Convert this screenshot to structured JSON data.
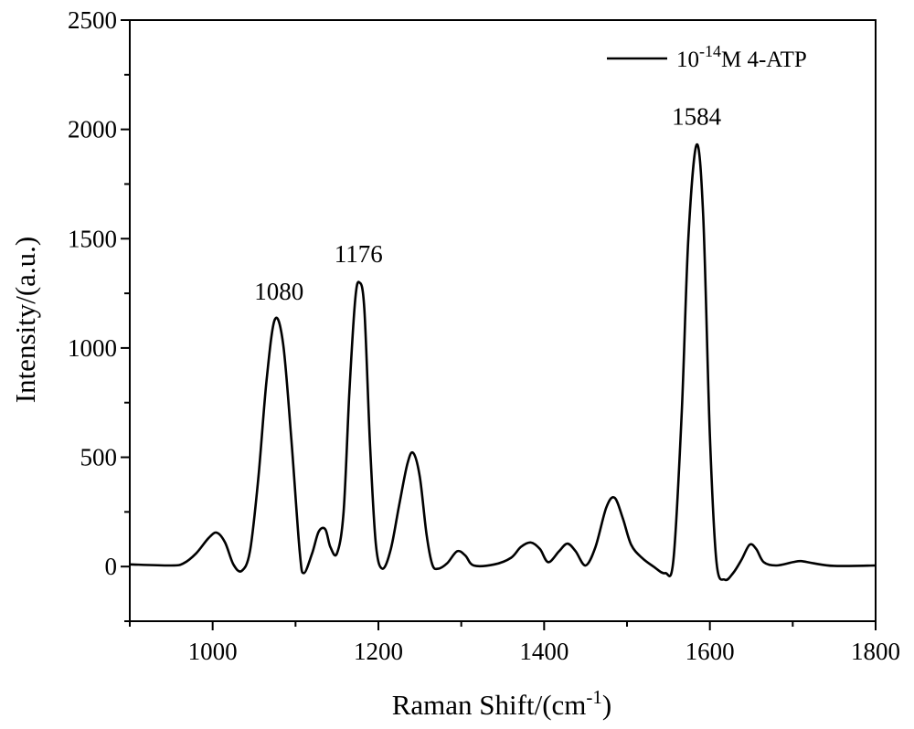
{
  "chart_data": {
    "type": "line",
    "title": "",
    "xlabel": "Raman Shift/(cm",
    "xlabel_superscript": "-1",
    "xlabel_suffix": ")",
    "ylabel": "Intensity/(a.u.)",
    "xlim": [
      900,
      1800
    ],
    "ylim": [
      -250,
      2500
    ],
    "x_ticks": [
      1000,
      1200,
      1400,
      1600,
      1800
    ],
    "y_ticks": [
      0,
      500,
      1000,
      1500,
      2000,
      2500
    ],
    "grid": false,
    "legend_position": "top-right",
    "line_color": "#000000",
    "series": [
      {
        "name": "10-14M 4-ATP",
        "name_base": "10",
        "name_superscript": "-14",
        "name_suffix": "M 4-ATP",
        "x": [
          900,
          950,
          965,
          980,
          995,
          1005,
          1015,
          1025,
          1035,
          1045,
          1055,
          1065,
          1075,
          1085,
          1095,
          1105,
          1110,
          1120,
          1128,
          1136,
          1142,
          1150,
          1158,
          1165,
          1172,
          1177,
          1183,
          1190,
          1197,
          1205,
          1215,
          1225,
          1235,
          1242,
          1250,
          1258,
          1265,
          1272,
          1283,
          1295,
          1305,
          1315,
          1340,
          1360,
          1372,
          1384,
          1395,
          1405,
          1418,
          1428,
          1438,
          1450,
          1462,
          1475,
          1485,
          1495,
          1505,
          1518,
          1532,
          1546,
          1556,
          1566,
          1574,
          1584,
          1592,
          1600,
          1608,
          1618,
          1628,
          1638,
          1648,
          1656,
          1665,
          1680,
          1700,
          1710,
          1725,
          1750,
          1800
        ],
        "y": [
          10,
          5,
          15,
          60,
          130,
          155,
          110,
          10,
          -20,
          70,
          400,
          850,
          1130,
          1020,
          580,
          70,
          -30,
          60,
          160,
          170,
          90,
          60,
          250,
          800,
          1220,
          1300,
          1180,
          550,
          100,
          -10,
          80,
          280,
          470,
          520,
          410,
          150,
          10,
          -10,
          15,
          70,
          50,
          5,
          10,
          40,
          90,
          110,
          80,
          20,
          70,
          105,
          70,
          5,
          90,
          270,
          315,
          220,
          100,
          40,
          0,
          -30,
          30,
          700,
          1500,
          1930,
          1600,
          600,
          20,
          -60,
          -30,
          30,
          100,
          80,
          20,
          5,
          20,
          25,
          15,
          3,
          5
        ]
      }
    ],
    "annotations": [
      {
        "text": "1080",
        "x": 1080,
        "y": 1130
      },
      {
        "text": "1176",
        "x": 1176,
        "y": 1300
      },
      {
        "text": "1584",
        "x": 1584,
        "y": 1930
      }
    ]
  }
}
